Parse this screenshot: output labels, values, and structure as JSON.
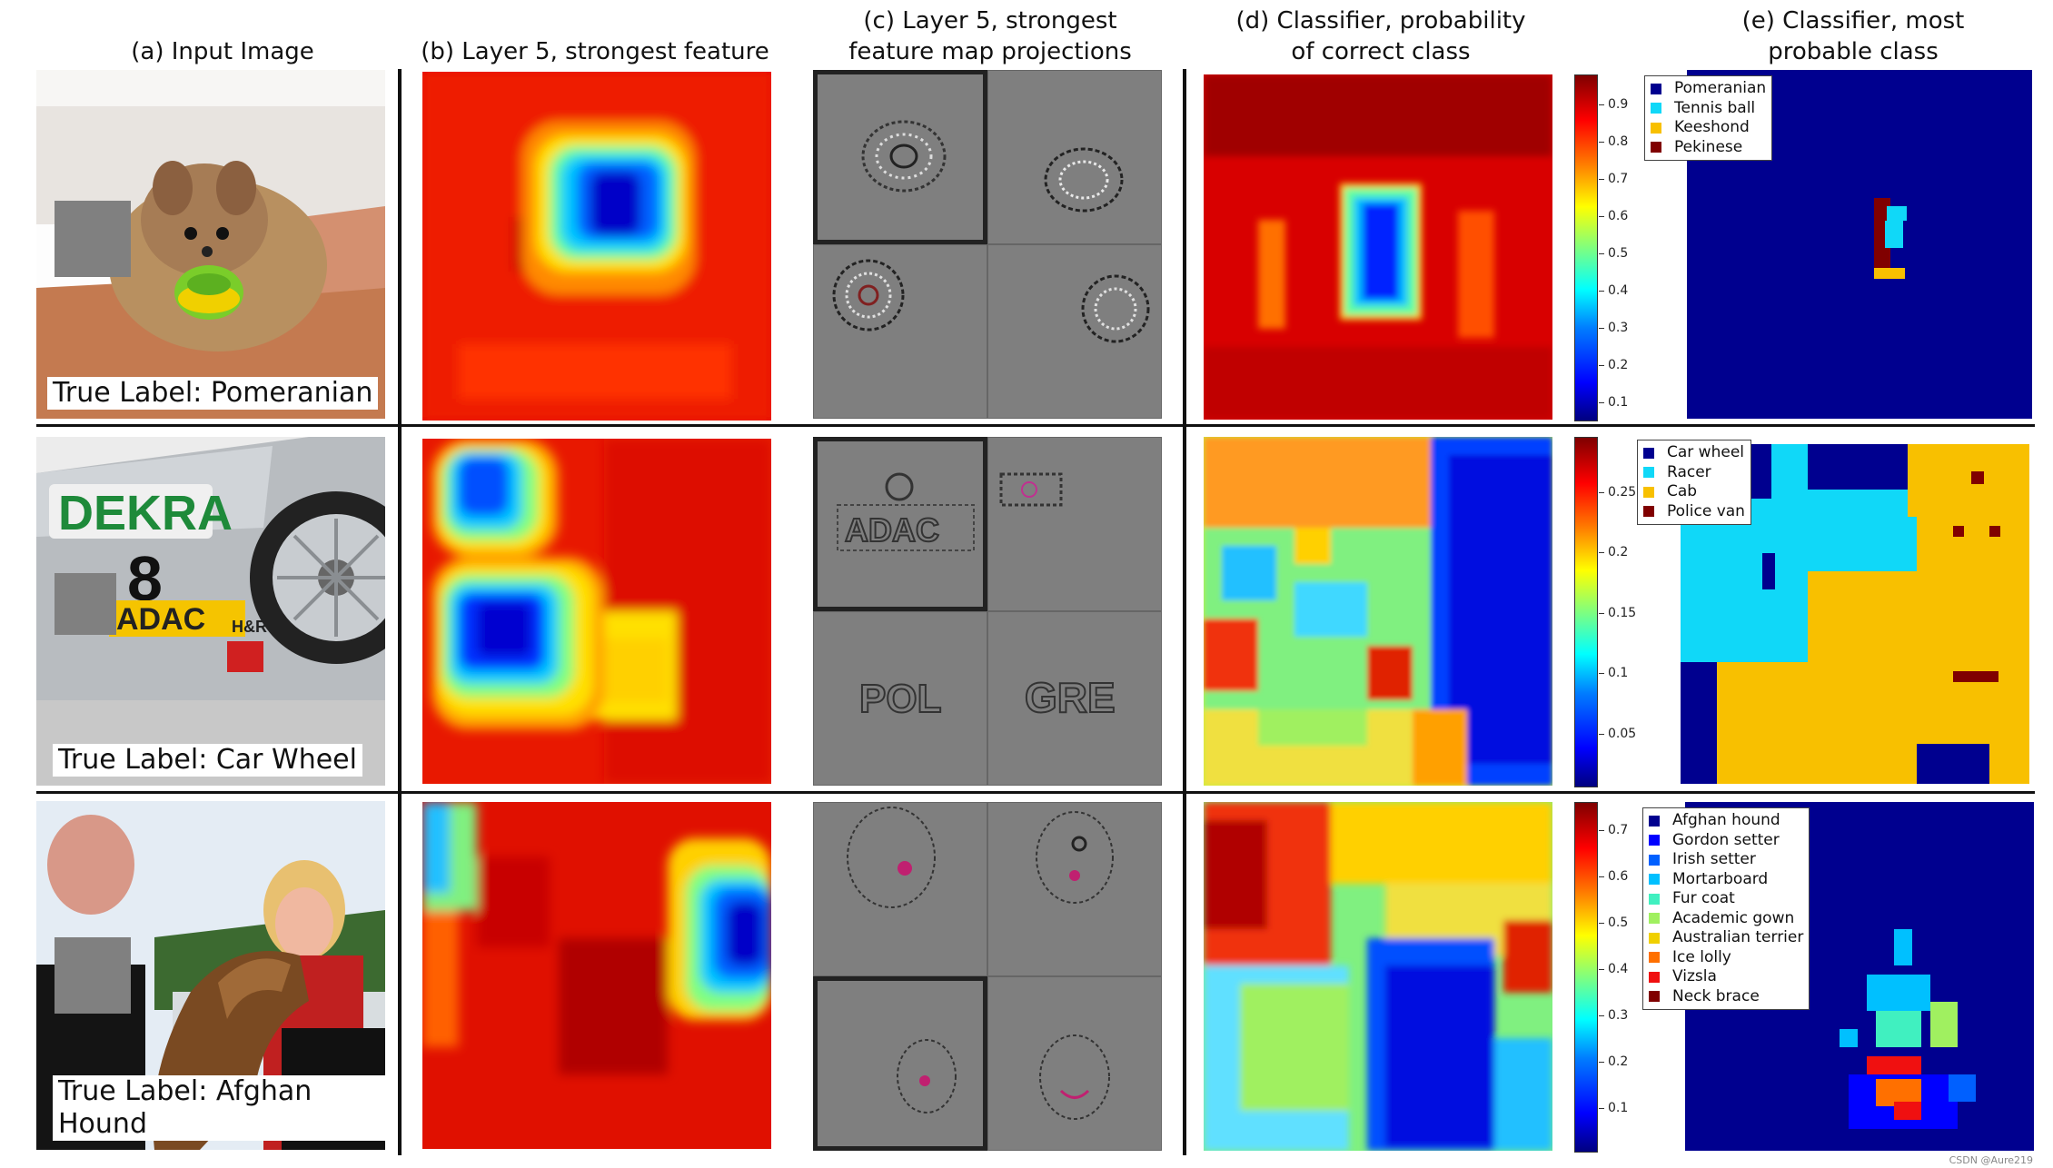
{
  "headers": {
    "a": "(a) Input Image",
    "b": "(b) Layer 5, strongest feature map",
    "c": "(c) Layer 5, strongest\nfeature map projections",
    "d": "(d) Classifier, probability\nof correct class",
    "e": "(e) Classifier, most\nprobable class"
  },
  "rows": [
    {
      "true_label": "True Label: Pomeranian",
      "colorbar_ticks": [
        "0.9",
        "0.8",
        "0.7",
        "0.6",
        "0.5",
        "0.4",
        "0.3",
        "0.2",
        "0.1"
      ],
      "legend": [
        {
          "label": "Pomeranian",
          "color": "#00008f"
        },
        {
          "label": "Tennis ball",
          "color": "#10d8f8"
        },
        {
          "label": "Keeshond",
          "color": "#f8c000"
        },
        {
          "label": "Pekinese",
          "color": "#800000"
        }
      ]
    },
    {
      "true_label": "True Label: Car Wheel",
      "colorbar_ticks": [
        "0.25",
        "0.2",
        "0.15",
        "0.1",
        "0.05"
      ],
      "legend": [
        {
          "label": "Car wheel",
          "color": "#00008f"
        },
        {
          "label": "Racer",
          "color": "#10d8f8"
        },
        {
          "label": "Cab",
          "color": "#f8c000"
        },
        {
          "label": "Police van",
          "color": "#800000"
        }
      ]
    },
    {
      "true_label": "True Label: Afghan Hound",
      "colorbar_ticks": [
        "0.7",
        "0.6",
        "0.5",
        "0.4",
        "0.3",
        "0.2",
        "0.1"
      ],
      "legend": [
        {
          "label": "Afghan hound",
          "color": "#00008f"
        },
        {
          "label": "Gordon setter",
          "color": "#0000ff"
        },
        {
          "label": "Irish setter",
          "color": "#0060ff"
        },
        {
          "label": "Mortarboard",
          "color": "#00c0ff"
        },
        {
          "label": "Fur coat",
          "color": "#40f0c0"
        },
        {
          "label": "Academic gown",
          "color": "#a0f060"
        },
        {
          "label": "Australian terrier",
          "color": "#f0d000"
        },
        {
          "label": "Ice lolly",
          "color": "#ff7000"
        },
        {
          "label": "Vizsla",
          "color": "#f01010"
        },
        {
          "label": "Neck brace",
          "color": "#800000"
        }
      ]
    }
  ],
  "photo_text": {
    "dekra": "DEKRA",
    "adac": "ADAC",
    "number": "8",
    "hr": "H&R"
  },
  "projection_text": {
    "r2_tl": "ADAC",
    "r2_bl": "POL",
    "r2_br": "GRE"
  },
  "credit": "CSDN @Aure219"
}
